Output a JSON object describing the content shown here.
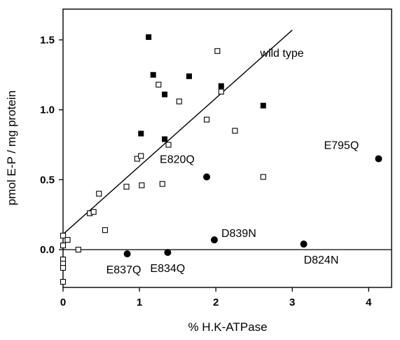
{
  "chart_data": {
    "type": "scatter",
    "title": "",
    "xlabel": "% H.K-ATPase",
    "ylabel": "pmol E-P / mg protein",
    "xlim": [
      0,
      4.3
    ],
    "ylim": [
      -0.27,
      1.72
    ],
    "x_ticks": [
      0,
      1,
      2,
      3,
      4
    ],
    "y_ticks": [
      0.0,
      0.5,
      1.0,
      1.5
    ],
    "y_tick_labels": [
      "0.0",
      "0.5",
      "1.0",
      "1.5"
    ],
    "grid": false,
    "zero_line": 0,
    "series": [
      {
        "marker": "open-square",
        "points": [
          [
            0.0,
            0.1
          ],
          [
            0.0,
            0.03
          ],
          [
            0.0,
            -0.07
          ],
          [
            0.0,
            -0.1
          ],
          [
            0.0,
            -0.13
          ],
          [
            0.0,
            -0.23
          ],
          [
            0.06,
            0.07
          ],
          [
            0.2,
            0.0
          ],
          [
            0.35,
            0.26
          ],
          [
            0.4,
            0.27
          ],
          [
            0.47,
            0.4
          ],
          [
            0.55,
            0.14
          ],
          [
            0.83,
            0.45
          ],
          [
            0.97,
            0.65
          ],
          [
            1.02,
            0.67
          ],
          [
            1.03,
            0.46
          ],
          [
            1.25,
            1.18
          ],
          [
            1.3,
            0.47
          ],
          [
            1.38,
            0.75
          ],
          [
            1.52,
            1.06
          ],
          [
            1.88,
            0.93
          ],
          [
            2.02,
            1.42
          ],
          [
            2.07,
            1.13
          ],
          [
            2.25,
            0.85
          ],
          [
            2.62,
            0.52
          ]
        ]
      },
      {
        "marker": "filled-square",
        "points": [
          [
            1.02,
            0.83
          ],
          [
            1.12,
            1.52
          ],
          [
            1.18,
            1.25
          ],
          [
            1.33,
            1.11
          ],
          [
            1.33,
            0.79
          ],
          [
            1.65,
            1.24
          ],
          [
            2.07,
            1.17
          ],
          [
            2.62,
            1.03
          ]
        ]
      },
      {
        "marker": "filled-circle",
        "points": [
          {
            "x": 0.84,
            "y": -0.03,
            "label": "E837Q"
          },
          {
            "x": 1.37,
            "y": -0.02,
            "label": "E834Q"
          },
          {
            "x": 1.88,
            "y": 0.52,
            "label": "E820Q"
          },
          {
            "x": 1.98,
            "y": 0.07,
            "label": "D839N"
          },
          {
            "x": 3.15,
            "y": 0.04,
            "label": "D824N"
          },
          {
            "x": 4.13,
            "y": 0.65,
            "label": "E795Q"
          }
        ]
      }
    ],
    "fit_line": {
      "label": "wild type",
      "x": [
        0,
        3.0
      ],
      "y": [
        0.11,
        1.57
      ]
    },
    "annotations": [
      {
        "text": "wild type",
        "x": 2.58,
        "y": 1.38
      }
    ]
  }
}
